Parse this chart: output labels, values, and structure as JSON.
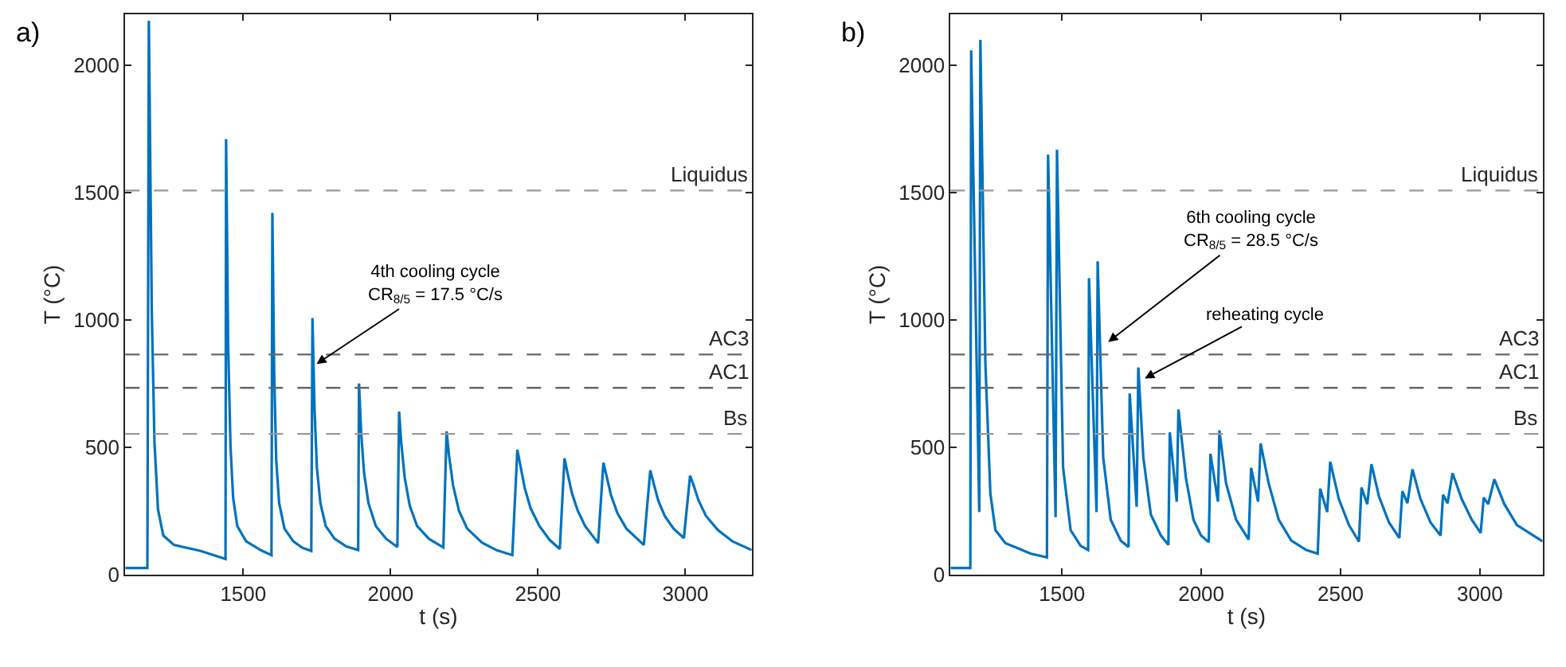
{
  "chart_data": [
    {
      "type": "line",
      "xlabel": "t (s)",
      "ylabel": "T (°C)",
      "xlim": [
        1100,
        3225
      ],
      "ylim": [
        0,
        2200
      ],
      "xticks": [
        1500,
        2000,
        2500,
        3000
      ],
      "yticks": [
        0,
        500,
        1000,
        1500,
        2000
      ],
      "marker": "none",
      "line_style": "solid",
      "x": [
        1100,
        1175,
        1180,
        1190,
        1199,
        1211,
        1229,
        1265,
        1356,
        1440,
        1442,
        1449,
        1457,
        1466,
        1480,
        1510,
        1560,
        1596,
        1599,
        1605,
        1612,
        1622,
        1640,
        1670,
        1700,
        1731,
        1735,
        1742,
        1750,
        1762,
        1780,
        1810,
        1850,
        1890,
        1893,
        1900,
        1910,
        1925,
        1950,
        1985,
        2023,
        2029,
        2036,
        2048,
        2065,
        2090,
        2130,
        2179,
        2190,
        2198,
        2212,
        2232,
        2260,
        2310,
        2360,
        2413,
        2430,
        2440,
        2455,
        2475,
        2505,
        2540,
        2574,
        2590,
        2600,
        2615,
        2635,
        2660,
        2704,
        2722,
        2732,
        2748,
        2770,
        2800,
        2859,
        2881,
        2892,
        2908,
        2930,
        2960,
        2995,
        3016,
        3028,
        3045,
        3070,
        3110,
        3160,
        3225
      ],
      "series": [
        {
          "color": "#0072bd",
          "values": [
            25,
            25,
            2175,
            1030,
            520,
            255,
            153,
            116,
            92,
            61,
            1710,
            900,
            500,
            300,
            190,
            130,
            95,
            76,
            1420,
            800,
            450,
            280,
            180,
            130,
            105,
            92,
            1007,
            650,
            420,
            280,
            190,
            140,
            110,
            96,
            750,
            560,
            400,
            280,
            190,
            140,
            108,
            640,
            520,
            380,
            270,
            190,
            140,
            106,
            562,
            470,
            350,
            250,
            180,
            125,
            95,
            76,
            490,
            430,
            340,
            260,
            190,
            135,
            100,
            456,
            400,
            320,
            250,
            190,
            123,
            439,
            390,
            310,
            240,
            180,
            116,
            409,
            360,
            290,
            230,
            180,
            143,
            388,
            350,
            290,
            230,
            175,
            130,
            96
          ]
        }
      ],
      "ref_lines": [
        {
          "axis": "y",
          "value": 1508,
          "label": "Liquidus",
          "color": "#999999",
          "line_style": "dashed"
        },
        {
          "axis": "y",
          "value": 864,
          "label": "AC3",
          "color": "#666666",
          "line_style": "dashed"
        },
        {
          "axis": "y",
          "value": 733,
          "label": "AC1",
          "color": "#666666",
          "line_style": "dashed"
        },
        {
          "axis": "y",
          "value": 552,
          "label": "Bs",
          "color": "#999999",
          "line_style": "dashed"
        }
      ],
      "annotations": [
        "a)",
        {
          "text": "4th cooling cycle\nCR$_{8/5}$ = 17.5 °C/s",
          "x": 1749,
          "y": 827
        }
      ]
    },
    {
      "type": "line",
      "xlabel": "t (s)",
      "ylabel": "T (°C)",
      "xlim": [
        1100,
        3225
      ],
      "ylim": [
        0,
        2200
      ],
      "xticks": [
        1500,
        2000,
        2500,
        3000
      ],
      "yticks": [
        0,
        500,
        1000,
        1500,
        2000
      ],
      "marker": "none",
      "line_style": "solid",
      "x": [
        1100,
        1171,
        1174,
        1203,
        1207,
        1225,
        1243,
        1261,
        1297,
        1387,
        1446,
        1450,
        1477,
        1482,
        1504,
        1531,
        1567,
        1594,
        1597,
        1624,
        1628,
        1648,
        1675,
        1711,
        1739,
        1743,
        1768,
        1774,
        1792,
        1819,
        1855,
        1882,
        1887,
        1912,
        1918,
        1945,
        1972,
        1999,
        2027,
        2033,
        2060,
        2065,
        2089,
        2125,
        2170,
        2179,
        2204,
        2213,
        2242,
        2278,
        2323,
        2377,
        2418,
        2427,
        2452,
        2463,
        2494,
        2530,
        2566,
        2575,
        2596,
        2611,
        2638,
        2674,
        2711,
        2722,
        2740,
        2758,
        2787,
        2823,
        2859,
        2868,
        2884,
        2902,
        2935,
        2971,
        3003,
        3014,
        3030,
        3052,
        3088,
        3133,
        3225
      ],
      "series": [
        {
          "color": "#0072bd",
          "values": [
            25,
            25,
            2059,
            245,
            2100,
            827,
            317,
            174,
            123,
            82,
            67,
            1649,
            225,
            1669,
            419,
            174,
            112,
            96,
            1164,
            245,
            1230,
            460,
            215,
            133,
            108,
            711,
            266,
            813,
            460,
            235,
            153,
            116,
            558,
            286,
            648,
            378,
            215,
            153,
            127,
            474,
            286,
            566,
            358,
            215,
            137,
            419,
            286,
            515,
            358,
            215,
            133,
            96,
            82,
            337,
            245,
            443,
            296,
            194,
            129,
            341,
            276,
            433,
            306,
            204,
            143,
            327,
            280,
            413,
            296,
            204,
            153,
            313,
            280,
            398,
            296,
            215,
            163,
            302,
            276,
            374,
            276,
            194,
            130
          ]
        }
      ],
      "ref_lines": [
        {
          "axis": "y",
          "value": 1508,
          "label": "Liquidus",
          "color": "#999999",
          "line_style": "dashed"
        },
        {
          "axis": "y",
          "value": 864,
          "label": "AC3",
          "color": "#666666",
          "line_style": "dashed"
        },
        {
          "axis": "y",
          "value": 733,
          "label": "AC1",
          "color": "#666666",
          "line_style": "dashed"
        },
        {
          "axis": "y",
          "value": 552,
          "label": "Bs",
          "color": "#999999",
          "line_style": "dashed"
        }
      ],
      "annotations": [
        "b)",
        {
          "text": "6th cooling cycle\nCR$_{8/5}$ = 28.5 °C/s",
          "x": 1666,
          "y": 913
        },
        {
          "text": "reheating cycle",
          "x": 1797,
          "y": 770
        }
      ]
    }
  ]
}
